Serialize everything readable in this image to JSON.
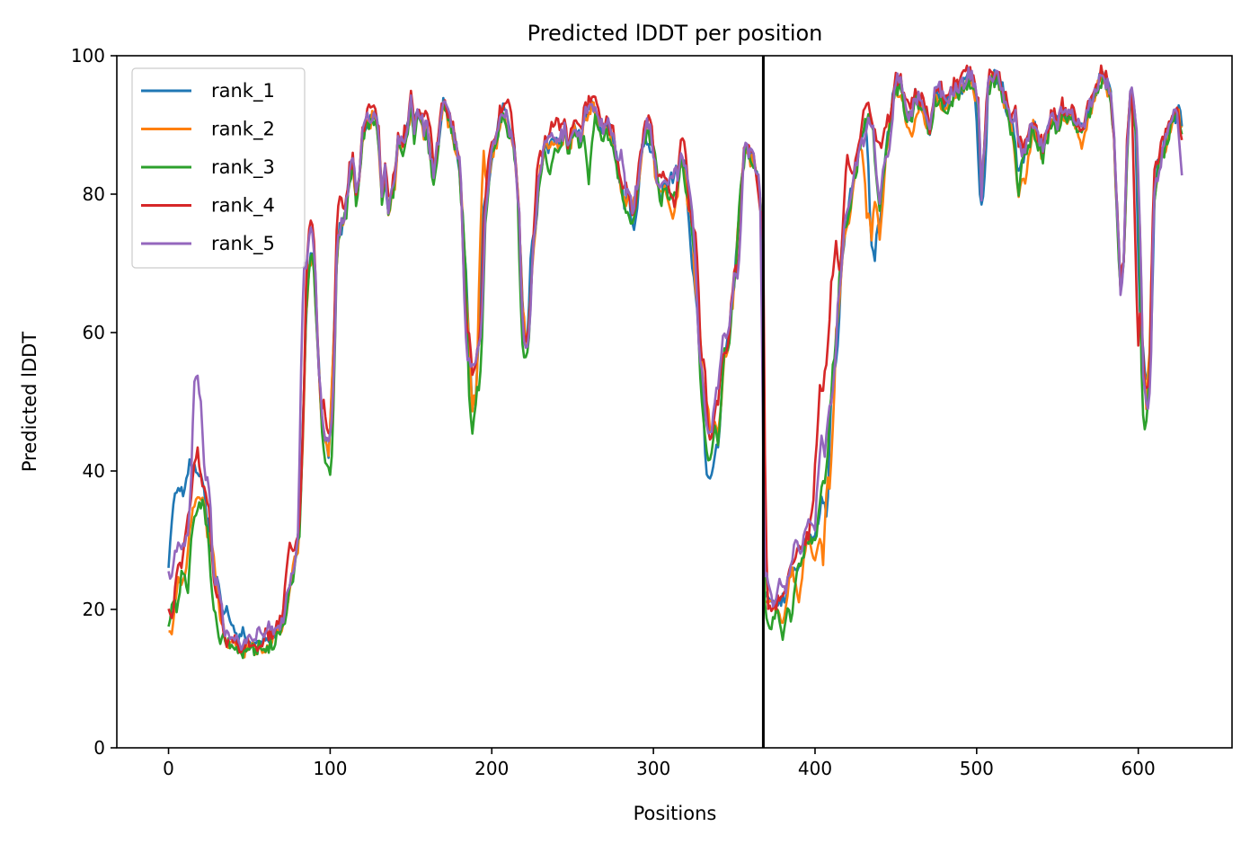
{
  "chart_data": {
    "type": "line",
    "title": "Predicted lDDT per position",
    "xlabel": "Positions",
    "ylabel": "Predicted lDDT",
    "xlim": [
      -32,
      658
    ],
    "ylim": [
      0,
      100
    ],
    "xticks": [
      0,
      100,
      200,
      300,
      400,
      500,
      600
    ],
    "yticks": [
      0,
      20,
      40,
      60,
      80,
      100
    ],
    "grid": false,
    "legend_position": "top-left",
    "vline": 368,
    "series": [
      {
        "name": "rank_1",
        "color": "#1f77b4",
        "offset": 0.0,
        "overrides": [
          [
            0,
            23
          ],
          [
            2,
            29
          ],
          [
            4,
            37
          ],
          [
            6,
            37
          ],
          [
            8,
            38
          ],
          [
            11,
            37
          ],
          [
            13,
            41
          ],
          [
            16,
            42
          ],
          [
            18,
            40
          ],
          [
            20,
            39
          ],
          [
            30,
            25
          ],
          [
            36,
            21
          ],
          [
            40,
            18
          ],
          [
            46,
            17
          ],
          [
            55,
            15
          ],
          [
            196,
            80
          ],
          [
            226,
            75
          ],
          [
            288,
            75
          ],
          [
            298,
            86
          ],
          [
            316,
            84
          ],
          [
            324,
            73
          ],
          [
            326,
            66
          ],
          [
            330,
            55
          ],
          [
            333,
            42
          ],
          [
            335,
            37
          ],
          [
            337,
            40
          ],
          [
            340,
            44
          ],
          [
            375,
            21
          ],
          [
            390,
            26
          ],
          [
            400,
            31
          ],
          [
            407,
            34
          ],
          [
            412,
            54
          ],
          [
            435,
            76
          ],
          [
            437,
            69
          ],
          [
            440,
            75
          ],
          [
            503,
            78
          ],
          [
            526,
            83
          ],
          [
            555,
            91
          ],
          [
            602,
            60
          ],
          [
            606,
            53
          ]
        ]
      },
      {
        "name": "rank_2",
        "color": "#ff7f0e",
        "offset": -0.4,
        "overrides": [
          [
            0,
            18
          ],
          [
            2,
            16
          ],
          [
            8,
            23
          ],
          [
            16,
            35
          ],
          [
            20,
            36
          ],
          [
            26,
            30
          ],
          [
            40,
            15
          ],
          [
            60,
            14
          ],
          [
            70,
            17
          ],
          [
            195,
            86
          ],
          [
            288,
            79
          ],
          [
            297,
            90
          ],
          [
            312,
            76
          ],
          [
            328,
            63
          ],
          [
            332,
            52
          ],
          [
            340,
            45
          ],
          [
            372,
            21
          ],
          [
            380,
            18
          ],
          [
            390,
            21
          ],
          [
            400,
            27
          ],
          [
            405,
            27
          ],
          [
            409,
            38
          ],
          [
            420,
            75
          ],
          [
            432,
            78
          ],
          [
            435,
            73
          ],
          [
            440,
            73
          ],
          [
            452,
            94
          ],
          [
            460,
            88
          ],
          [
            470,
            90
          ],
          [
            480,
            92
          ],
          [
            526,
            79
          ],
          [
            530,
            82
          ],
          [
            555,
            90
          ],
          [
            565,
            87
          ]
        ]
      },
      {
        "name": "rank_3",
        "color": "#2ca02c",
        "offset": -0.6,
        "overrides": [
          [
            0,
            17
          ],
          [
            5,
            20
          ],
          [
            12,
            22
          ],
          [
            16,
            33
          ],
          [
            28,
            20
          ],
          [
            32,
            15
          ],
          [
            40,
            15
          ],
          [
            60,
            14
          ],
          [
            70,
            17
          ],
          [
            98,
            41
          ],
          [
            100,
            40
          ],
          [
            188,
            45
          ],
          [
            192,
            52
          ],
          [
            220,
            56
          ],
          [
            236,
            83
          ],
          [
            260,
            82
          ],
          [
            286,
            76
          ],
          [
            300,
            87
          ],
          [
            312,
            79
          ],
          [
            327,
            71
          ],
          [
            330,
            50
          ],
          [
            334,
            41
          ],
          [
            340,
            44
          ],
          [
            372,
            17
          ],
          [
            380,
            16
          ],
          [
            385,
            18
          ],
          [
            400,
            30
          ],
          [
            405,
            38
          ],
          [
            418,
            75
          ],
          [
            440,
            78
          ],
          [
            482,
            92
          ],
          [
            526,
            80
          ],
          [
            530,
            86
          ],
          [
            557,
            91
          ],
          [
            604,
            46
          ]
        ]
      },
      {
        "name": "rank_4",
        "color": "#d62728",
        "offset": 0.8,
        "overrides": [
          [
            0,
            21
          ],
          [
            2,
            19
          ],
          [
            8,
            26
          ],
          [
            12,
            33
          ],
          [
            16,
            39
          ],
          [
            18,
            43
          ],
          [
            22,
            38
          ],
          [
            30,
            22
          ],
          [
            36,
            15
          ],
          [
            45,
            14
          ],
          [
            55,
            14
          ],
          [
            75,
            30
          ],
          [
            88,
            76
          ],
          [
            96,
            50
          ],
          [
            100,
            45
          ],
          [
            106,
            80
          ],
          [
            125,
            93
          ],
          [
            160,
            92
          ],
          [
            185,
            60
          ],
          [
            191,
            57
          ],
          [
            198,
            82
          ],
          [
            200,
            88
          ],
          [
            210,
            94
          ],
          [
            221,
            59
          ],
          [
            230,
            86
          ],
          [
            240,
            91
          ],
          [
            264,
            94
          ],
          [
            283,
            82
          ],
          [
            287,
            77
          ],
          [
            306,
            83
          ],
          [
            313,
            78
          ],
          [
            318,
            88
          ],
          [
            325,
            75
          ],
          [
            332,
            58
          ],
          [
            335,
            44
          ],
          [
            340,
            50
          ],
          [
            344,
            57
          ],
          [
            352,
            69
          ],
          [
            358,
            87
          ],
          [
            367,
            77
          ],
          [
            372,
            20
          ],
          [
            380,
            22
          ],
          [
            390,
            29
          ],
          [
            400,
            37
          ],
          [
            403,
            52
          ],
          [
            406,
            54
          ],
          [
            410,
            66
          ],
          [
            413,
            73
          ],
          [
            420,
            86
          ],
          [
            432,
            93
          ],
          [
            445,
            91
          ],
          [
            600,
            58
          ],
          [
            606,
            52
          ],
          [
            611,
            85
          ],
          [
            620,
            91
          ],
          [
            628,
            87
          ]
        ]
      },
      {
        "name": "rank_5",
        "color": "#9467bd",
        "offset": 0.3,
        "overrides": [
          [
            0,
            25
          ],
          [
            6,
            30
          ],
          [
            12,
            31
          ],
          [
            16,
            47
          ],
          [
            18,
            58
          ],
          [
            20,
            50
          ],
          [
            24,
            39
          ],
          [
            30,
            24
          ],
          [
            40,
            16
          ],
          [
            50,
            16
          ],
          [
            56,
            17
          ],
          [
            62,
            18
          ],
          [
            84,
            70
          ],
          [
            88,
            75
          ],
          [
            100,
            45
          ],
          [
            185,
            57
          ],
          [
            188,
            55
          ],
          [
            192,
            58
          ],
          [
            221,
            58
          ],
          [
            264,
            92
          ],
          [
            280,
            86
          ],
          [
            310,
            82
          ],
          [
            320,
            84
          ],
          [
            330,
            55
          ],
          [
            334,
            46
          ],
          [
            340,
            52
          ],
          [
            344,
            60
          ],
          [
            352,
            68
          ],
          [
            370,
            25
          ],
          [
            378,
            24
          ],
          [
            388,
            30
          ],
          [
            396,
            33
          ],
          [
            404,
            45
          ],
          [
            410,
            50
          ],
          [
            420,
            78
          ],
          [
            430,
            87
          ],
          [
            440,
            79
          ],
          [
            445,
            85
          ],
          [
            606,
            49
          ],
          [
            612,
            82
          ],
          [
            626,
            91
          ],
          [
            628,
            80
          ]
        ]
      }
    ]
  }
}
